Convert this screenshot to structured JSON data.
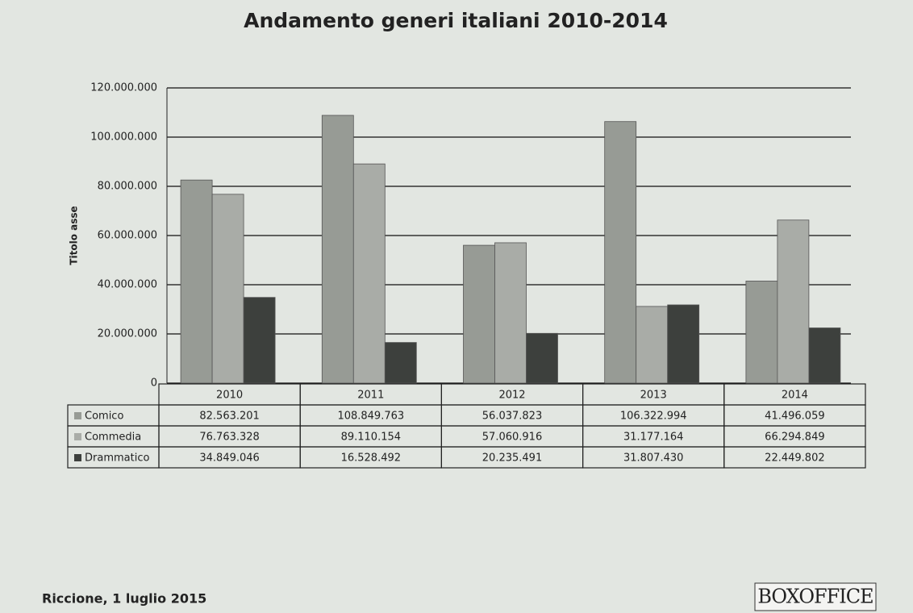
{
  "chart_data": {
    "type": "bar",
    "title": "Andamento generi italiani 2010-2014",
    "y_label": "Titolo asse",
    "categories": [
      "2010",
      "2011",
      "2012",
      "2013",
      "2014"
    ],
    "series": [
      {
        "name": "Comico",
        "color": "#979b95",
        "values": [
          82563201,
          108849763,
          56037823,
          106322994,
          41496059
        ],
        "value_labels": [
          "82.563.201",
          "108.849.763",
          "56.037.823",
          "106.322.994",
          "41.496.059"
        ]
      },
      {
        "name": "Commedia",
        "color": "#a9aca7",
        "values": [
          76763328,
          89110154,
          57060916,
          31177164,
          66294849
        ],
        "value_labels": [
          "76.763.328",
          "89.110.154",
          "57.060.916",
          "31.177.164",
          "66.294.849"
        ]
      },
      {
        "name": "Drammatico",
        "color": "#3d403d",
        "values": [
          34849046,
          16528492,
          20235491,
          31807430,
          22449802
        ],
        "value_labels": [
          "34.849.046",
          "16.528.492",
          "20.235.491",
          "31.807.430",
          "22.449.802"
        ]
      }
    ],
    "ylim": [
      0,
      120000000
    ],
    "yticks": [
      0,
      {
        "value": 20000000,
        "label": "20.000.000"
      },
      {
        "value": 40000000,
        "label": "40.000.000"
      },
      {
        "value": 60000000,
        "label": "60.000.000"
      },
      {
        "value": 80000000,
        "label": "80.000.000"
      },
      {
        "value": 100000000,
        "label": "100.000.000"
      },
      {
        "value": 120000000,
        "label": "120.000.000"
      }
    ],
    "grid": true
  },
  "footer": {
    "place_date": "Riccione, 1 luglio 2015",
    "logo": "BOXOFFICE"
  }
}
